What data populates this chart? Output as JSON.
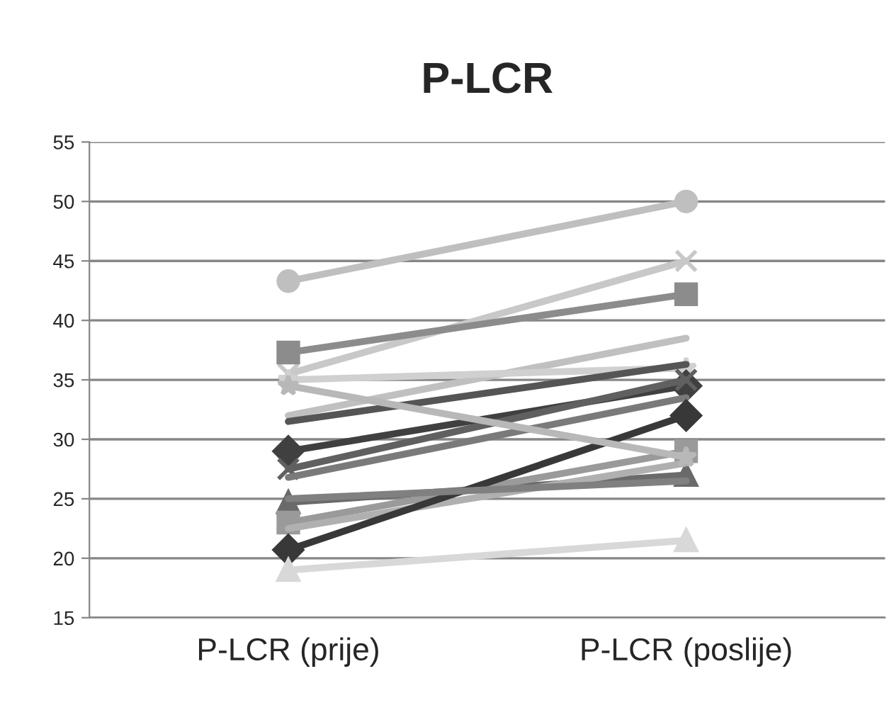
{
  "chart_data": {
    "type": "line",
    "title": "P-LCR",
    "categories": [
      "P-LCR (prije)",
      "P-LCR (poslije)"
    ],
    "ylim": [
      15,
      55
    ],
    "yticks": [
      15,
      20,
      25,
      30,
      35,
      40,
      45,
      50,
      55
    ],
    "grid": "y",
    "series": [
      {
        "color": "#bfbfbf",
        "marker": "circle",
        "values": [
          43.3,
          50
        ]
      },
      {
        "color": "#c8c8c8",
        "marker": "cross",
        "values": [
          35.5,
          45
        ]
      },
      {
        "color": "#8c8c8c",
        "marker": "square",
        "values": [
          37.3,
          42.2
        ]
      },
      {
        "color": "#c0c0c0",
        "marker": "none",
        "values": [
          32,
          38.5
        ]
      },
      {
        "color": "#d0d0d0",
        "marker": "star",
        "values": [
          35,
          36
        ]
      },
      {
        "color": "#555555",
        "marker": "none",
        "values": [
          31.5,
          36.3
        ]
      },
      {
        "color": "#404040",
        "marker": "diamond",
        "values": [
          29,
          34.5
        ]
      },
      {
        "color": "#606060",
        "marker": "cross",
        "values": [
          27.5,
          35
        ]
      },
      {
        "color": "#7a7a7a",
        "marker": "none",
        "values": [
          26.8,
          33.5
        ]
      },
      {
        "color": "#6a6a6a",
        "marker": "triangle",
        "values": [
          24.7,
          27
        ]
      },
      {
        "color": "#9a9a9a",
        "marker": "square",
        "values": [
          23,
          29
        ]
      },
      {
        "color": "#b0b0b0",
        "marker": "none",
        "values": [
          22.5,
          28
        ]
      },
      {
        "color": "#383838",
        "marker": "diamond",
        "values": [
          20.7,
          32
        ]
      },
      {
        "color": "#d8d8d8",
        "marker": "triangle",
        "values": [
          19,
          21.5
        ]
      },
      {
        "color": "#b8b8b8",
        "marker": "star",
        "values": [
          34.5,
          28.5
        ]
      },
      {
        "color": "#808080",
        "marker": "none",
        "values": [
          25,
          26.5
        ]
      }
    ]
  }
}
